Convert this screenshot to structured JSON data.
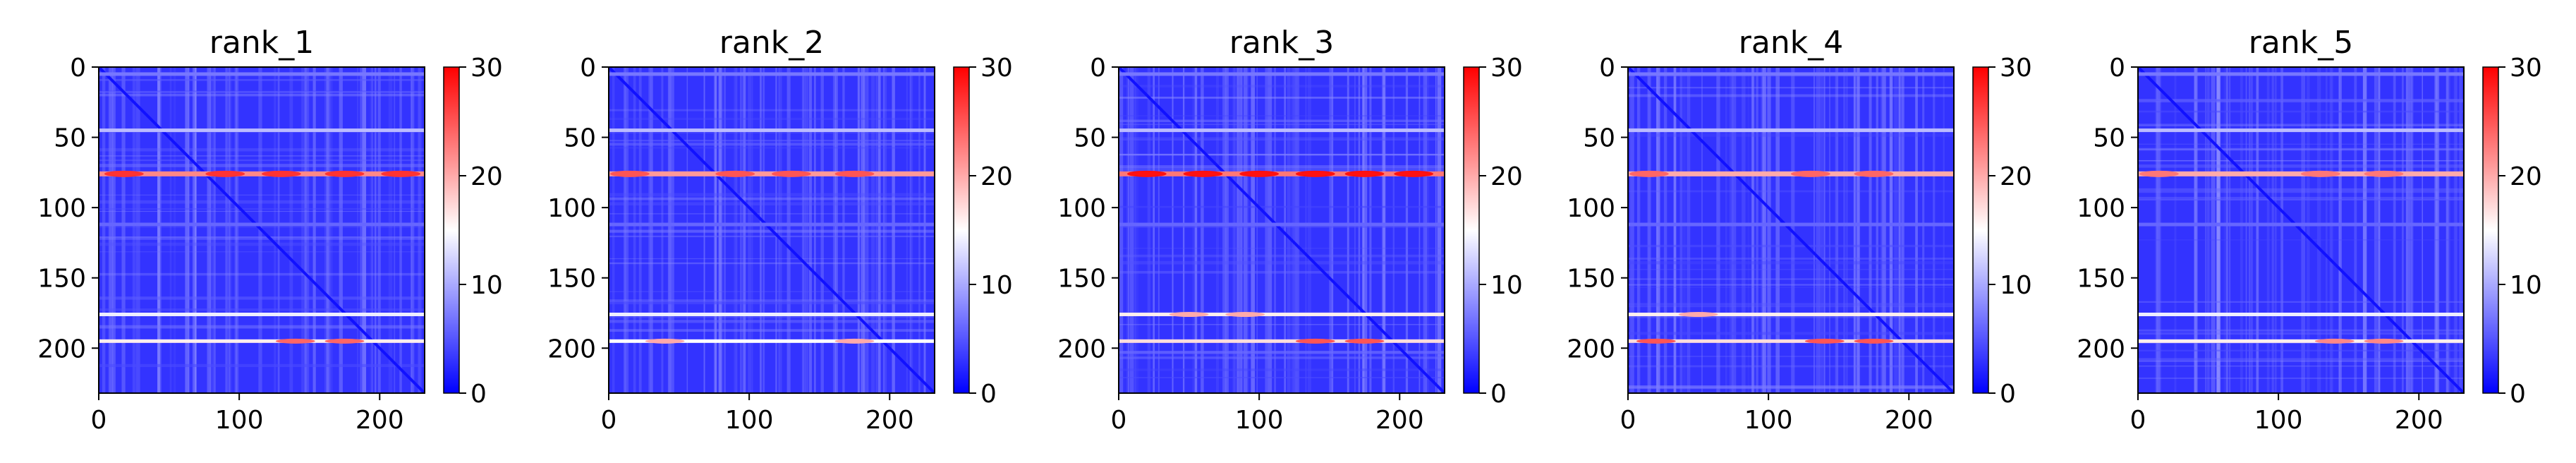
{
  "chart_data": [
    {
      "type": "heatmap",
      "title": "rank_1",
      "xlim": [
        0,
        232
      ],
      "ylim": [
        232,
        0
      ],
      "xticks": [
        0,
        100,
        200
      ],
      "yticks": [
        0,
        50,
        100,
        150,
        200
      ],
      "colorbar": {
        "min": 0,
        "max": 30,
        "ticks": [
          0,
          10,
          20,
          30
        ],
        "colormap": "bwr"
      },
      "background_value": 3,
      "diagonal_value": 1,
      "rows": [
        {
          "y": 5,
          "value": 7,
          "note": "faint band"
        },
        {
          "y": 45,
          "value": 11
        },
        {
          "y": 76,
          "value": 22,
          "peaks_x": [
            18,
            90,
            130,
            175,
            215
          ],
          "peak_value": 27
        },
        {
          "y": 112,
          "value": 6
        },
        {
          "y": 176,
          "value": 14
        },
        {
          "y": 195,
          "value": 16,
          "peaks_x": [
            140,
            175
          ],
          "peak_value": 24
        }
      ]
    },
    {
      "type": "heatmap",
      "title": "rank_2",
      "xlim": [
        0,
        232
      ],
      "ylim": [
        232,
        0
      ],
      "xticks": [
        0,
        100,
        200
      ],
      "yticks": [
        0,
        50,
        100,
        150,
        200
      ],
      "colorbar": {
        "min": 0,
        "max": 30,
        "ticks": [
          0,
          10,
          20,
          30
        ],
        "colormap": "bwr"
      },
      "background_value": 3,
      "diagonal_value": 1,
      "rows": [
        {
          "y": 5,
          "value": 7
        },
        {
          "y": 45,
          "value": 11
        },
        {
          "y": 76,
          "value": 21,
          "peaks_x": [
            15,
            90,
            130,
            175
          ],
          "peak_value": 25
        },
        {
          "y": 112,
          "value": 6
        },
        {
          "y": 176,
          "value": 14
        },
        {
          "y": 195,
          "value": 15,
          "peaks_x": [
            40,
            175
          ],
          "peak_value": 20
        }
      ]
    },
    {
      "type": "heatmap",
      "title": "rank_3",
      "xlim": [
        0,
        232
      ],
      "ylim": [
        232,
        0
      ],
      "xticks": [
        0,
        100,
        200
      ],
      "yticks": [
        0,
        50,
        100,
        150,
        200
      ],
      "colorbar": {
        "min": 0,
        "max": 30,
        "ticks": [
          0,
          10,
          20,
          30
        ],
        "colormap": "bwr"
      },
      "background_value": 3,
      "diagonal_value": 1,
      "rows": [
        {
          "y": 5,
          "value": 7
        },
        {
          "y": 45,
          "value": 11
        },
        {
          "y": 76,
          "value": 23,
          "peaks_x": [
            20,
            60,
            100,
            140,
            175,
            210
          ],
          "peak_value": 29
        },
        {
          "y": 112,
          "value": 6
        },
        {
          "y": 176,
          "value": 16,
          "peaks_x": [
            50,
            90
          ],
          "peak_value": 20
        },
        {
          "y": 195,
          "value": 17,
          "peaks_x": [
            140,
            175
          ],
          "peak_value": 25
        }
      ]
    },
    {
      "type": "heatmap",
      "title": "rank_4",
      "xlim": [
        0,
        232
      ],
      "ylim": [
        232,
        0
      ],
      "xticks": [
        0,
        100,
        200
      ],
      "yticks": [
        0,
        50,
        100,
        150,
        200
      ],
      "colorbar": {
        "min": 0,
        "max": 30,
        "ticks": [
          0,
          10,
          20,
          30
        ],
        "colormap": "bwr"
      },
      "background_value": 3,
      "diagonal_value": 1,
      "rows": [
        {
          "y": 5,
          "value": 7
        },
        {
          "y": 45,
          "value": 11
        },
        {
          "y": 76,
          "value": 20,
          "peaks_x": [
            15,
            130,
            175
          ],
          "peak_value": 24
        },
        {
          "y": 112,
          "value": 6
        },
        {
          "y": 176,
          "value": 16,
          "peaks_x": [
            50
          ],
          "peak_value": 20
        },
        {
          "y": 195,
          "value": 17,
          "peaks_x": [
            20,
            140,
            175
          ],
          "peak_value": 25
        }
      ]
    },
    {
      "type": "heatmap",
      "title": "rank_5",
      "xlim": [
        0,
        232
      ],
      "ylim": [
        232,
        0
      ],
      "xticks": [
        0,
        100,
        200
      ],
      "yticks": [
        0,
        50,
        100,
        150,
        200
      ],
      "colorbar": {
        "min": 0,
        "max": 30,
        "ticks": [
          0,
          10,
          20,
          30
        ],
        "colormap": "bwr"
      },
      "background_value": 3,
      "diagonal_value": 1,
      "rows": [
        {
          "y": 5,
          "value": 7
        },
        {
          "y": 45,
          "value": 11
        },
        {
          "y": 76,
          "value": 20,
          "peaks_x": [
            15,
            130,
            175
          ],
          "peak_value": 23
        },
        {
          "y": 112,
          "value": 6
        },
        {
          "y": 176,
          "value": 14
        },
        {
          "y": 195,
          "value": 16,
          "peaks_x": [
            140,
            175
          ],
          "peak_value": 22
        }
      ]
    }
  ]
}
